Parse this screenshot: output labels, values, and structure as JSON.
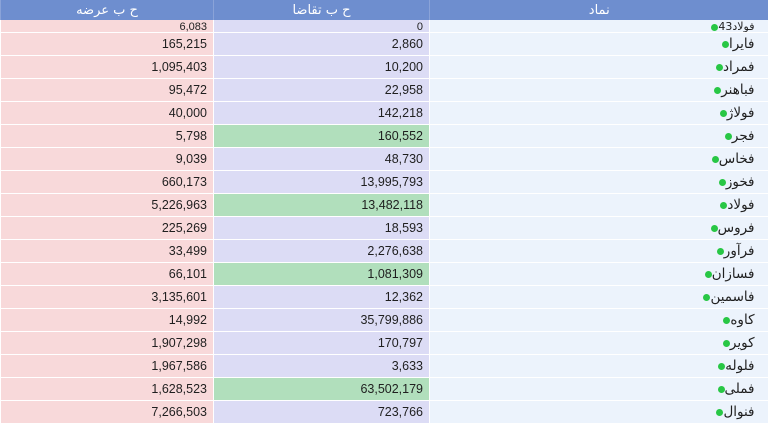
{
  "colors": {
    "header": "#6e8ecf",
    "offer_bg": "#f8d9da",
    "bid_bg": "#dcdcf5",
    "bid_highlight": "#b1dfbc",
    "name_bg": "#ecf3fc",
    "status_dot": "#28c745"
  },
  "header": {
    "offer_volume": "ح ب عرضه",
    "bid_volume": "ح ب تقاضا",
    "symbol": "نماد"
  },
  "rows": [
    {
      "symbol": "فولاد43",
      "offer": "6,083",
      "bid": "0",
      "highlight": false
    },
    {
      "symbol": "فایرا",
      "offer": "165,215",
      "bid": "2,860",
      "highlight": false
    },
    {
      "symbol": "فمراد",
      "offer": "1,095,403",
      "bid": "10,200",
      "highlight": false
    },
    {
      "symbol": "فباهنر",
      "offer": "95,472",
      "bid": "22,958",
      "highlight": false
    },
    {
      "symbol": "فولاژ",
      "offer": "40,000",
      "bid": "142,218",
      "highlight": false
    },
    {
      "symbol": "فجر",
      "offer": "5,798",
      "bid": "160,552",
      "highlight": true
    },
    {
      "symbol": "فخاس",
      "offer": "9,039",
      "bid": "48,730",
      "highlight": false
    },
    {
      "symbol": "فخوز",
      "offer": "660,173",
      "bid": "13,995,793",
      "highlight": false
    },
    {
      "symbol": "فولاد",
      "offer": "5,226,963",
      "bid": "13,482,118",
      "highlight": true
    },
    {
      "symbol": "فروس",
      "offer": "225,269",
      "bid": "18,593",
      "highlight": false
    },
    {
      "symbol": "فرآور",
      "offer": "33,499",
      "bid": "2,276,638",
      "highlight": false
    },
    {
      "symbol": "فسازان",
      "offer": "66,101",
      "bid": "1,081,309",
      "highlight": true
    },
    {
      "symbol": "فاسمین",
      "offer": "3,135,601",
      "bid": "12,362",
      "highlight": false
    },
    {
      "symbol": "کاوه",
      "offer": "14,992",
      "bid": "35,799,886",
      "highlight": false
    },
    {
      "symbol": "کویر",
      "offer": "1,907,298",
      "bid": "170,797",
      "highlight": false
    },
    {
      "symbol": "فلوله",
      "offer": "1,967,586",
      "bid": "3,633",
      "highlight": false
    },
    {
      "symbol": "فملی",
      "offer": "1,628,523",
      "bid": "63,502,179",
      "highlight": true
    },
    {
      "symbol": "فنوال",
      "offer": "7,266,503",
      "bid": "723,766",
      "highlight": false
    }
  ]
}
